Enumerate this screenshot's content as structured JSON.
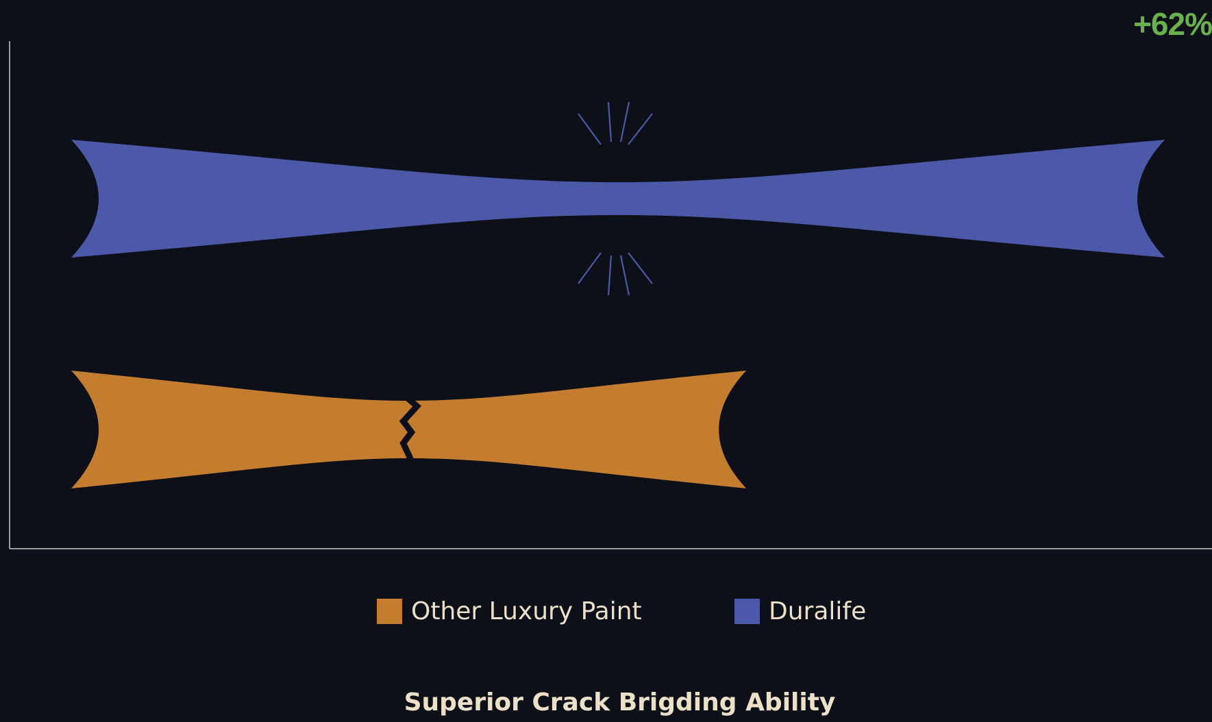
{
  "badge": "+62%",
  "caption": "Superior Crack Brigding Ability",
  "colors": {
    "background": "#0d1018",
    "axis": "#c9c9c9",
    "other": "#c47d2f",
    "duralife": "#4b59a8",
    "badge": "#6ab04c",
    "text": "#ece0c8"
  },
  "chart_data": {
    "type": "bar",
    "orientation": "horizontal",
    "categories": [
      "Duralife",
      "Other Luxury Paint"
    ],
    "values": [
      162,
      100
    ],
    "xlim": [
      0,
      169
    ],
    "ylim": [
      0,
      2
    ],
    "grid": false,
    "legend_position": "bottom-center",
    "annotations": [
      "+62%"
    ],
    "series": [
      {
        "name": "Other Luxury Paint",
        "color": "#c47d2f",
        "value": 100,
        "cracked": true
      },
      {
        "name": "Duralife",
        "color": "#4b59a8",
        "value": 162,
        "cracked": false
      }
    ]
  }
}
